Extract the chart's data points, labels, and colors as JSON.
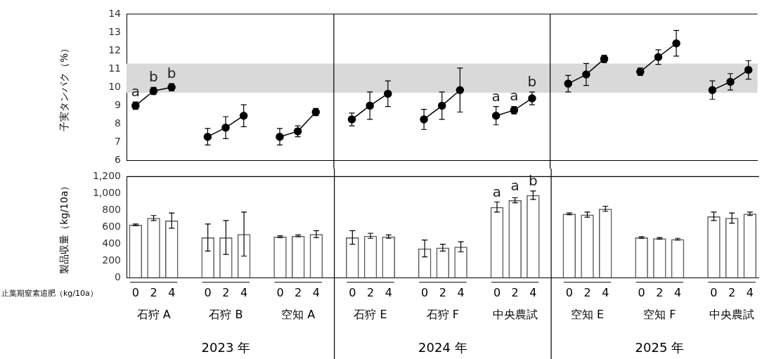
{
  "chart_data": [
    {
      "type": "line",
      "ylabel": "子実タンパク（%）",
      "marker": "circle",
      "tick_labels": "y",
      "categories": [
        "0",
        "2",
        "4",
        null,
        "0",
        "2",
        "4",
        null,
        "0",
        "2",
        "4",
        null,
        "0",
        "2",
        "4",
        null,
        "0",
        "2",
        "4",
        null,
        "0",
        "2",
        "4",
        null,
        "0",
        "2",
        "4",
        null,
        "0",
        "2",
        "4",
        null,
        "0",
        "2",
        "4"
      ],
      "ylim": [
        6,
        14
      ],
      "yticks": [
        6,
        7,
        8,
        9,
        10,
        11,
        12,
        13,
        14
      ],
      "bands": [
        {
          "axis": "y",
          "from": 9.7,
          "to": 11.3,
          "color": "#d9d9d9"
        }
      ],
      "series": [
        {
          "color": "#000000",
          "values": [
            9.0,
            9.8,
            10.0,
            null,
            null,
            null,
            null,
            null,
            null,
            null,
            null,
            null,
            null,
            null,
            null,
            null,
            null,
            null,
            null,
            null,
            null,
            null,
            null,
            null,
            null,
            null,
            null,
            null,
            null,
            null,
            null,
            null,
            null,
            null,
            null
          ],
          "errors": [
            0.2,
            0.2,
            0.2,
            null,
            null,
            null,
            null,
            null,
            null,
            null,
            null,
            null,
            null,
            null,
            null,
            null,
            null,
            null,
            null,
            null,
            null,
            null,
            null,
            null,
            null,
            null,
            null,
            null,
            null,
            null,
            null,
            null,
            null,
            null,
            null
          ],
          "value_labels": [
            "a",
            "b",
            "b",
            null,
            null,
            null,
            null,
            null,
            null,
            null,
            null,
            null,
            null,
            null,
            null,
            null,
            null,
            null,
            null,
            null,
            null,
            null,
            null,
            null,
            null,
            null,
            null,
            null,
            null,
            null,
            null,
            null,
            null,
            null,
            null
          ]
        },
        {
          "color": "#000000",
          "values": [
            null,
            null,
            null,
            null,
            7.3,
            7.8,
            8.45,
            null,
            null,
            null,
            null,
            null,
            null,
            null,
            null,
            null,
            null,
            null,
            null,
            null,
            null,
            null,
            null,
            null,
            null,
            null,
            null,
            null,
            null,
            null,
            null,
            null,
            null,
            null,
            null
          ],
          "errors": [
            null,
            null,
            null,
            null,
            0.45,
            0.6,
            0.6,
            null,
            null,
            null,
            null,
            null,
            null,
            null,
            null,
            null,
            null,
            null,
            null,
            null,
            null,
            null,
            null,
            null,
            null,
            null,
            null,
            null,
            null,
            null,
            null,
            null,
            null,
            null,
            null
          ]
        },
        {
          "color": "#000000",
          "values": [
            null,
            null,
            null,
            null,
            null,
            null,
            null,
            null,
            7.3,
            7.6,
            8.65,
            null,
            null,
            null,
            null,
            null,
            null,
            null,
            null,
            null,
            null,
            null,
            null,
            null,
            null,
            null,
            null,
            null,
            null,
            null,
            null,
            null,
            null,
            null,
            null
          ],
          "errors": [
            null,
            null,
            null,
            null,
            null,
            null,
            null,
            null,
            0.45,
            0.3,
            0.2,
            null,
            null,
            null,
            null,
            null,
            null,
            null,
            null,
            null,
            null,
            null,
            null,
            null,
            null,
            null,
            null,
            null,
            null,
            null,
            null,
            null,
            null,
            null,
            null
          ]
        },
        {
          "color": "#000000",
          "values": [
            null,
            null,
            null,
            null,
            null,
            null,
            null,
            null,
            null,
            null,
            null,
            null,
            8.25,
            9.0,
            9.65,
            null,
            null,
            null,
            null,
            null,
            null,
            null,
            null,
            null,
            null,
            null,
            null,
            null,
            null,
            null,
            null,
            null,
            null,
            null,
            null
          ],
          "errors": [
            null,
            null,
            null,
            null,
            null,
            null,
            null,
            null,
            null,
            null,
            null,
            null,
            0.35,
            0.75,
            0.7,
            null,
            null,
            null,
            null,
            null,
            null,
            null,
            null,
            null,
            null,
            null,
            null,
            null,
            null,
            null,
            null,
            null,
            null,
            null,
            null
          ]
        },
        {
          "color": "#000000",
          "values": [
            null,
            null,
            null,
            null,
            null,
            null,
            null,
            null,
            null,
            null,
            null,
            null,
            null,
            null,
            null,
            null,
            8.25,
            9.0,
            9.85,
            null,
            null,
            null,
            null,
            null,
            null,
            null,
            null,
            null,
            null,
            null,
            null,
            null,
            null,
            null,
            null
          ],
          "errors": [
            null,
            null,
            null,
            null,
            null,
            null,
            null,
            null,
            null,
            null,
            null,
            null,
            null,
            null,
            null,
            null,
            0.55,
            0.75,
            1.2,
            null,
            null,
            null,
            null,
            null,
            null,
            null,
            null,
            null,
            null,
            null,
            null,
            null,
            null,
            null,
            null
          ]
        },
        {
          "color": "#000000",
          "values": [
            null,
            null,
            null,
            null,
            null,
            null,
            null,
            null,
            null,
            null,
            null,
            null,
            null,
            null,
            null,
            null,
            null,
            null,
            null,
            null,
            8.45,
            8.75,
            9.4,
            null,
            null,
            null,
            null,
            null,
            null,
            null,
            null,
            null,
            null,
            null,
            null
          ],
          "errors": [
            null,
            null,
            null,
            null,
            null,
            null,
            null,
            null,
            null,
            null,
            null,
            null,
            null,
            null,
            null,
            null,
            null,
            null,
            null,
            null,
            0.5,
            0.2,
            0.35,
            null,
            null,
            null,
            null,
            null,
            null,
            null,
            null,
            null,
            null,
            null,
            null
          ],
          "value_labels": [
            null,
            null,
            null,
            null,
            null,
            null,
            null,
            null,
            null,
            null,
            null,
            null,
            null,
            null,
            null,
            null,
            null,
            null,
            null,
            null,
            "a",
            "a",
            "b",
            null,
            null,
            null,
            null,
            null,
            null,
            null,
            null,
            null,
            null,
            null,
            null
          ]
        },
        {
          "color": "#000000",
          "values": [
            null,
            null,
            null,
            null,
            null,
            null,
            null,
            null,
            null,
            null,
            null,
            null,
            null,
            null,
            null,
            null,
            null,
            null,
            null,
            null,
            null,
            null,
            null,
            null,
            10.2,
            10.7,
            11.55,
            null,
            null,
            null,
            null,
            null,
            null,
            null,
            null
          ],
          "errors": [
            null,
            null,
            null,
            null,
            null,
            null,
            null,
            null,
            null,
            null,
            null,
            null,
            null,
            null,
            null,
            null,
            null,
            null,
            null,
            null,
            null,
            null,
            null,
            null,
            0.45,
            0.6,
            0.2,
            null,
            null,
            null,
            null,
            null,
            null,
            null,
            null
          ]
        },
        {
          "color": "#000000",
          "values": [
            null,
            null,
            null,
            null,
            null,
            null,
            null,
            null,
            null,
            null,
            null,
            null,
            null,
            null,
            null,
            null,
            null,
            null,
            null,
            null,
            null,
            null,
            null,
            null,
            null,
            null,
            null,
            null,
            10.85,
            11.65,
            12.4,
            null,
            null,
            null,
            null
          ],
          "errors": [
            null,
            null,
            null,
            null,
            null,
            null,
            null,
            null,
            null,
            null,
            null,
            null,
            null,
            null,
            null,
            null,
            null,
            null,
            null,
            null,
            null,
            null,
            null,
            null,
            null,
            null,
            null,
            null,
            0.2,
            0.4,
            0.7,
            null,
            null,
            null,
            null
          ]
        },
        {
          "color": "#000000",
          "values": [
            null,
            null,
            null,
            null,
            null,
            null,
            null,
            null,
            null,
            null,
            null,
            null,
            null,
            null,
            null,
            null,
            null,
            null,
            null,
            null,
            null,
            null,
            null,
            null,
            null,
            null,
            null,
            null,
            null,
            null,
            null,
            null,
            9.85,
            10.3,
            10.95
          ],
          "errors": [
            null,
            null,
            null,
            null,
            null,
            null,
            null,
            null,
            null,
            null,
            null,
            null,
            null,
            null,
            null,
            null,
            null,
            null,
            null,
            null,
            null,
            null,
            null,
            null,
            null,
            null,
            null,
            null,
            null,
            null,
            null,
            null,
            0.5,
            0.45,
            0.5
          ]
        }
      ]
    },
    {
      "type": "bar",
      "ylabel": "製品収量（kg/10a）",
      "xlabel": "止葉期窒素追肥（kg/10a）",
      "color": "#595959",
      "categories": [
        "0",
        "2",
        "4",
        null,
        "0",
        "2",
        "4",
        null,
        "0",
        "2",
        "4",
        null,
        "0",
        "2",
        "4",
        null,
        "0",
        "2",
        "4",
        null,
        "0",
        "2",
        "4",
        null,
        "0",
        "2",
        "4",
        null,
        "0",
        "2",
        "4",
        null,
        "0",
        "2",
        "4"
      ],
      "ylim": [
        0,
        1200
      ],
      "yticks": [
        0,
        200,
        400,
        600,
        800,
        {
          "value": 1000,
          "label": "1,000"
        },
        {
          "value": 1200,
          "label": "1,200"
        }
      ],
      "values": [
        630,
        710,
        680,
        null,
        480,
        480,
        520,
        null,
        490,
        500,
        520,
        null,
        480,
        500,
        490,
        null,
        350,
        360,
        370,
        null,
        840,
        920,
        980,
        null,
        760,
        750,
        820,
        null,
        480,
        470,
        460,
        null,
        730,
        710,
        760
      ],
      "errors": [
        10,
        30,
        90,
        null,
        160,
        200,
        260,
        null,
        10,
        10,
        40,
        null,
        80,
        30,
        20,
        null,
        100,
        40,
        60,
        null,
        60,
        30,
        50,
        null,
        10,
        30,
        30,
        null,
        10,
        10,
        10,
        null,
        50,
        60,
        20
      ],
      "value_labels": [
        null,
        null,
        null,
        null,
        null,
        null,
        null,
        null,
        null,
        null,
        null,
        null,
        null,
        null,
        null,
        null,
        null,
        null,
        null,
        null,
        "a",
        "a",
        "b",
        null,
        null,
        null,
        null,
        null,
        null,
        null,
        null,
        null,
        null,
        null,
        null
      ],
      "annotations": [
        "石狩 A",
        "石狩 B",
        "空知 A",
        "石狩 E",
        "石狩 F",
        "中央農試",
        "空知 E",
        "空知 F",
        "中央農試",
        "2023 年",
        "2024 年",
        "2025 年"
      ]
    }
  ]
}
